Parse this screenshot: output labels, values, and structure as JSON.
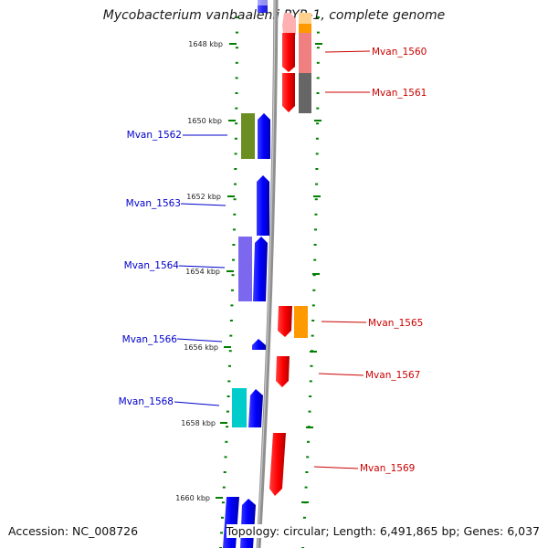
{
  "title": "Mycobacterium vanbaalenii PYR-1, complete genome",
  "accession": "Accession: NC_008726",
  "topology_summary": "Topology: circular; Length: 6,491,865 bp; Genes: 6,037",
  "colors": {
    "backbone": "#808080",
    "tick": "#008000",
    "plus_strand_label": "#cc0000",
    "minus_strand_label": "#0000cc"
  },
  "position_labels": [
    "1648 kbp",
    "1650 kbp",
    "1652 kbp",
    "1654 kbp",
    "1656 kbp",
    "1658 kbp",
    "1660 kbp"
  ],
  "plus_strand_genes": [
    "Mvan_1560",
    "Mvan_1561",
    "Mvan_1565",
    "Mvan_1567",
    "Mvan_1569"
  ],
  "minus_strand_genes": [
    "Mvan_1562",
    "Mvan_1563",
    "Mvan_1564",
    "Mvan_1566",
    "Mvan_1568"
  ],
  "feature_colors": {
    "cds_plus": "#ff0000",
    "cds_minus": "#0000ff",
    "cog_orange": "#ff9900",
    "cog_pink": "#f08080",
    "cog_gray": "#666666",
    "cog_olive": "#6b8e23",
    "cog_purple": "#7b68ee",
    "cog_cyan": "#00cccc"
  }
}
